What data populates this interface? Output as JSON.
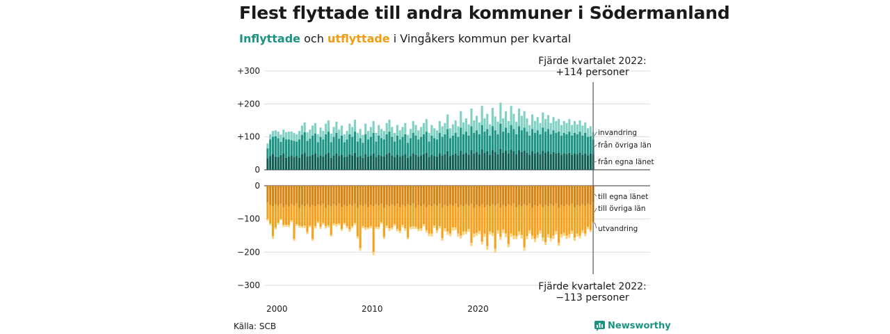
{
  "title": "Flest flyttade till andra kommuner i Södermanland",
  "subtitle": {
    "inflyttade": "Inflyttade",
    "och": " och ",
    "utflyttade": "utflyttade",
    "rest": " i Vingåkers kommun per kvartal"
  },
  "source": "Källa: SCB",
  "brand": "Newsworthy",
  "colors": {
    "in_lan": "#0e5e54",
    "in_ovriga": "#1b9484",
    "in_invandring": "#80d1c4",
    "ut_lan": "#d98411",
    "ut_ovriga": "#f5a11c",
    "ut_utvandring": "#fbd27e",
    "grid": "#dddddd"
  },
  "chart_data": {
    "type": "bar",
    "stacked": true,
    "x_start_year": 2000,
    "x_end": "Q4 2022",
    "x_ticks": [
      "2000",
      "2010",
      "2020"
    ],
    "y_ticks_top": [
      "+300",
      "+200",
      "+100",
      "0"
    ],
    "y_ticks_bottom": [
      "0",
      "−100",
      "−200",
      "−300"
    ],
    "ylim_top": [
      0,
      300
    ],
    "ylim_bottom": [
      -300,
      0
    ],
    "grid": true,
    "annotation_top": [
      "Fjärde kvartalet 2022:",
      "+114 personer"
    ],
    "annotation_bottom": [
      "Fjärde kvartalet 2022:",
      "−113 personer"
    ],
    "in_series": [
      {
        "name": "från egna länet",
        "values": [
          35,
          42,
          48,
          40,
          38,
          45,
          50,
          36,
          40,
          44,
          38,
          42,
          36,
          48,
          52,
          40,
          42,
          46,
          50,
          38,
          44,
          40,
          48,
          52,
          36,
          44,
          50,
          42,
          46,
          38,
          40,
          48,
          44,
          52,
          38,
          42,
          36,
          48,
          40,
          44,
          50,
          38,
          46,
          42,
          40,
          48,
          52,
          44,
          38,
          46,
          40,
          44,
          48,
          36,
          42,
          50,
          46,
          40,
          44,
          48,
          52,
          38,
          46,
          42,
          40,
          50,
          44,
          48,
          56,
          42,
          46,
          50,
          44,
          58,
          48,
          52,
          46,
          60,
          50,
          54,
          48,
          62,
          52,
          56,
          46,
          60,
          54,
          48,
          64,
          52,
          58,
          50,
          62,
          56,
          48,
          60,
          54,
          58,
          52,
          46,
          56,
          50,
          54,
          48,
          58,
          52,
          56,
          48,
          54,
          50,
          52,
          46,
          50,
          48,
          52,
          46,
          50,
          48,
          52,
          46,
          50,
          44,
          50,
          48
        ]
      },
      {
        "name": "från övriga län",
        "values": [
          30,
          50,
          52,
          62,
          58,
          40,
          48,
          56,
          52,
          46,
          50,
          44,
          56,
          58,
          62,
          48,
          52,
          58,
          60,
          46,
          56,
          52,
          60,
          64,
          48,
          56,
          62,
          52,
          58,
          46,
          52,
          60,
          56,
          64,
          48,
          54,
          46,
          60,
          52,
          56,
          62,
          48,
          58,
          54,
          52,
          60,
          64,
          56,
          48,
          58,
          52,
          56,
          60,
          46,
          54,
          62,
          58,
          52,
          56,
          60,
          64,
          48,
          58,
          54,
          52,
          62,
          56,
          60,
          68,
          54,
          58,
          62,
          56,
          70,
          60,
          64,
          58,
          72,
          62,
          66,
          60,
          74,
          64,
          68,
          58,
          72,
          66,
          60,
          76,
          64,
          70,
          62,
          74,
          68,
          60,
          72,
          66,
          70,
          64,
          58,
          68,
          62,
          66,
          60,
          70,
          64,
          68,
          60,
          66,
          62,
          64,
          58,
          62,
          60,
          64,
          58,
          62,
          60,
          64,
          58,
          62,
          56,
          52,
          44
        ]
      },
      {
        "name": "invandring",
        "values": [
          15,
          16,
          18,
          18,
          20,
          22,
          24,
          22,
          24,
          26,
          24,
          22,
          26,
          28,
          30,
          26,
          28,
          30,
          32,
          24,
          28,
          26,
          32,
          34,
          26,
          30,
          34,
          28,
          30,
          24,
          26,
          32,
          30,
          36,
          26,
          28,
          24,
          32,
          26,
          30,
          36,
          26,
          32,
          28,
          26,
          34,
          36,
          30,
          26,
          32,
          28,
          30,
          34,
          24,
          28,
          36,
          32,
          28,
          30,
          34,
          38,
          26,
          32,
          30,
          28,
          36,
          32,
          34,
          44,
          30,
          34,
          38,
          32,
          50,
          36,
          40,
          34,
          54,
          38,
          44,
          36,
          58,
          40,
          46,
          34,
          56,
          42,
          38,
          64,
          40,
          50,
          36,
          58,
          46,
          38,
          54,
          44,
          50,
          40,
          32,
          44,
          36,
          40,
          34,
          46,
          38,
          42,
          34,
          40,
          36,
          38,
          32,
          36,
          34,
          38,
          32,
          36,
          30,
          34,
          30,
          32,
          26,
          30,
          22
        ]
      }
    ],
    "out_series": [
      {
        "name": "till egna länet",
        "values": [
          -50,
          -58,
          -62,
          -56,
          -60,
          -54,
          -64,
          -58,
          -62,
          -56,
          -60,
          -54,
          -66,
          -58,
          -62,
          -56,
          -64,
          -58,
          -62,
          -56,
          -60,
          -54,
          -66,
          -58,
          -62,
          -56,
          -60,
          -54,
          -64,
          -58,
          -62,
          -56,
          -60,
          -54,
          -66,
          -58,
          -62,
          -56,
          -64,
          -58,
          -62,
          -56,
          -60,
          -54,
          -66,
          -58,
          -62,
          -56,
          -60,
          -54,
          -64,
          -58,
          -62,
          -56,
          -60,
          -54,
          -66,
          -58,
          -62,
          -56,
          -64,
          -58,
          -62,
          -56,
          -60,
          -54,
          -66,
          -58,
          -62,
          -56,
          -60,
          -54,
          -64,
          -58,
          -62,
          -56,
          -60,
          -54,
          -66,
          -58,
          -62,
          -56,
          -64,
          -58,
          -62,
          -56,
          -60,
          -54,
          -66,
          -58,
          -62,
          -56,
          -60,
          -54,
          -64,
          -58,
          -62,
          -56,
          -60,
          -54,
          -66,
          -58,
          -62,
          -56,
          -64,
          -58,
          -62,
          -56,
          -60,
          -54,
          -66,
          -58,
          -62,
          -56,
          -60,
          -54,
          -64,
          -58,
          -62,
          -56,
          -60,
          -54,
          -58,
          -50
        ]
      },
      {
        "name": "till övriga län",
        "values": [
          -50,
          -56,
          -90,
          -70,
          -52,
          -46,
          -54,
          -60,
          -56,
          -48,
          -100,
          -62,
          -54,
          -64,
          -58,
          -84,
          -56,
          -102,
          -60,
          -52,
          -64,
          -58,
          -56,
          -62,
          -86,
          -58,
          -56,
          -60,
          -66,
          -54,
          -60,
          -76,
          -62,
          -58,
          -86,
          -130,
          -60,
          -70,
          -62,
          -64,
          -138,
          -68,
          -64,
          -56,
          -88,
          -62,
          -66,
          -70,
          -56,
          -76,
          -72,
          -60,
          -66,
          -100,
          -64,
          -68,
          -58,
          -72,
          -66,
          -60,
          -70,
          -86,
          -82,
          -64,
          -74,
          -68,
          -92,
          -70,
          -76,
          -88,
          -66,
          -72,
          -80,
          -92,
          -76,
          -82,
          -70,
          -118,
          -78,
          -84,
          -74,
          -112,
          -80,
          -124,
          -76,
          -86,
          -130,
          -80,
          -88,
          -74,
          -82,
          -120,
          -84,
          -96,
          -88,
          -80,
          -86,
          -130,
          -92,
          -80,
          -84,
          -102,
          -86,
          -78,
          -92,
          -112,
          -84,
          -102,
          -90,
          -82,
          -106,
          -88,
          -80,
          -94,
          -86,
          -82,
          -92,
          -86,
          -88,
          -78,
          -84,
          -70,
          -76,
          -58
        ]
      },
      {
        "name": "utvandring",
        "values": [
          -6,
          -5,
          -8,
          -6,
          -5,
          -4,
          -6,
          -5,
          -7,
          -5,
          -6,
          -5,
          -6,
          -5,
          -7,
          -6,
          -5,
          -6,
          -7,
          -5,
          -6,
          -5,
          -7,
          -6,
          -5,
          -6,
          -7,
          -5,
          -6,
          -5,
          -6,
          -7,
          -5,
          -6,
          -7,
          -8,
          -6,
          -7,
          -5,
          -6,
          -9,
          -6,
          -7,
          -5,
          -6,
          -7,
          -8,
          -6,
          -5,
          -7,
          -6,
          -7,
          -8,
          -6,
          -7,
          -8,
          -6,
          -7,
          -8,
          -6,
          -7,
          -8,
          -9,
          -7,
          -8,
          -7,
          -8,
          -9,
          -10,
          -8,
          -9,
          -8,
          -10,
          -9,
          -10,
          -8,
          -9,
          -10,
          -11,
          -9,
          -10,
          -9,
          -10,
          -11,
          -9,
          -10,
          -11,
          -10,
          -9,
          -10,
          -11,
          -9,
          -10,
          -11,
          -9,
          -10,
          -11,
          -10,
          -9,
          -10,
          -11,
          -10,
          -9,
          -10,
          -11,
          -9,
          -10,
          -9,
          -10,
          -11,
          -9,
          -10,
          -9,
          -10,
          -11,
          -9,
          -10,
          -9,
          -8,
          -9,
          -8,
          -7,
          -6,
          -5
        ]
      }
    ]
  }
}
